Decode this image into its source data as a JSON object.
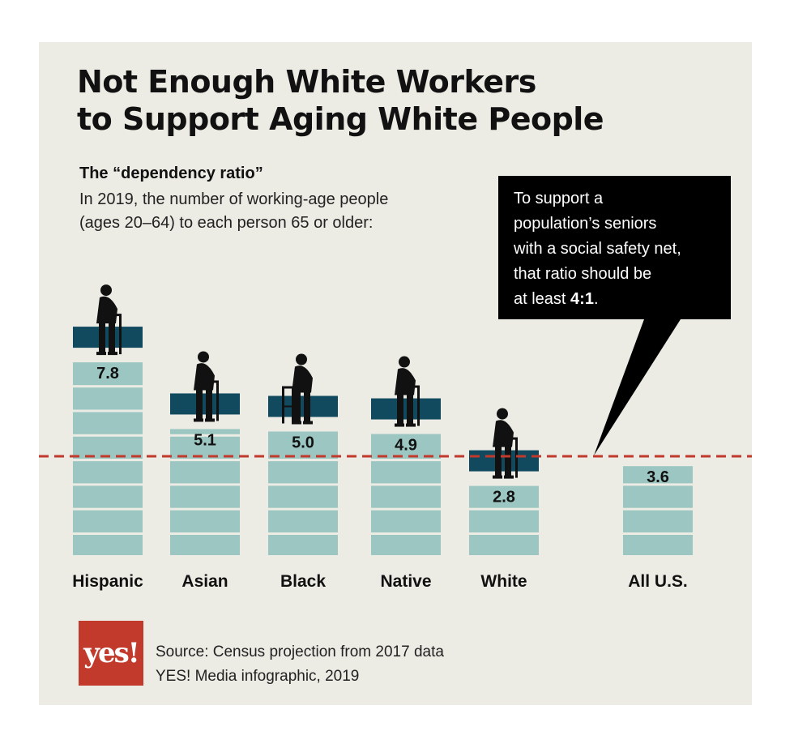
{
  "title_lines": [
    "Not Enough White Workers",
    "to Support Aging White People"
  ],
  "subtitle": "The “dependency ratio”",
  "description_lines": [
    "In 2019, the number of working-age people",
    "(ages 20–64) to each person 65 or older:"
  ],
  "callout": {
    "lines": [
      "To support a",
      "population’s seniors",
      "with a social safety net,",
      "that ratio should be"
    ],
    "last_prefix": "at least ",
    "last_bold": "4:1",
    "last_suffix": "."
  },
  "logo_text": "yes!",
  "source_lines": [
    "Source: Census projection from 2017 data",
    "YES! Media infographic, 2019"
  ],
  "colors": {
    "bar": "#9cc6c2",
    "cap": "#11495e",
    "threshold_line": "#c13a2c",
    "background": "#ecebe4",
    "callout_bg": "#000000"
  },
  "chart_data": {
    "type": "bar",
    "categories": [
      "Hispanic",
      "Asian",
      "Black",
      "Native",
      "White",
      "All U.S."
    ],
    "values": [
      7.8,
      5.1,
      5.0,
      4.9,
      2.8,
      3.6
    ],
    "value_labels": [
      "7.8",
      "5.1",
      "5.0",
      "4.9",
      "2.8",
      "3.6"
    ],
    "threshold": 4,
    "ylim": [
      0,
      8
    ],
    "icons": [
      "elderly-woman-cane-icon",
      "elderly-man-cane-icon",
      "elderly-woman-walker-icon",
      "elderly-man-cane-icon",
      "elderly-man-cane-icon",
      ""
    ],
    "title": "",
    "xlabel": "",
    "ylabel": ""
  }
}
